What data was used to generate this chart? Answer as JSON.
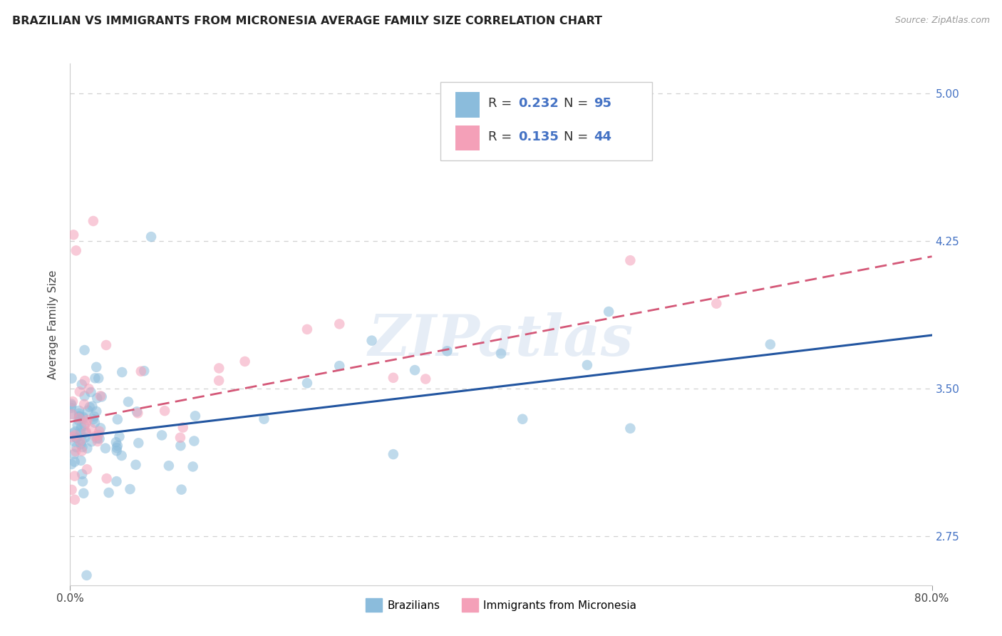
{
  "title": "BRAZILIAN VS IMMIGRANTS FROM MICRONESIA AVERAGE FAMILY SIZE CORRELATION CHART",
  "source": "Source: ZipAtlas.com",
  "ylabel": "Average Family Size",
  "xlim": [
    0.0,
    0.8
  ],
  "ylim": [
    2.5,
    5.15
  ],
  "yticks": [
    2.75,
    3.5,
    4.25,
    5.0
  ],
  "xticks": [
    0.0,
    0.8
  ],
  "xticklabels": [
    "0.0%",
    "80.0%"
  ],
  "color_blue": "#8bbcdc",
  "color_blue_line": "#2255a0",
  "color_pink": "#f4a0b8",
  "color_pink_line": "#d45878",
  "color_ytick": "#4472c4",
  "watermark": "ZIPatlas",
  "title_fontsize": 11.5,
  "axis_label_fontsize": 11,
  "tick_fontsize": 11,
  "legend_fontsize": 13
}
